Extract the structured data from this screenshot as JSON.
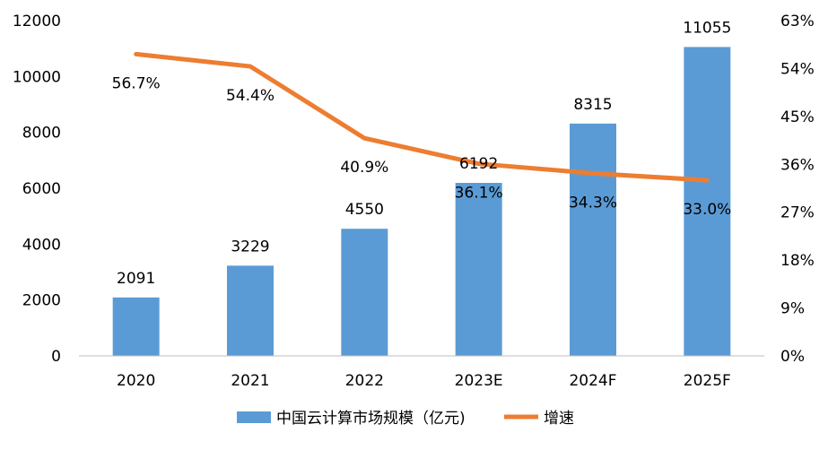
{
  "chart_data": {
    "type": "bar",
    "categories": [
      "2020",
      "2021",
      "2022",
      "2023E",
      "2024F",
      "2025F"
    ],
    "series": [
      {
        "name": "中国云计算市场规模（亿元)",
        "type": "bar",
        "axis": "left",
        "values": [
          2091,
          3229,
          4550,
          6192,
          8315,
          11055
        ],
        "labels": [
          "2091",
          "3229",
          "4550",
          "6192",
          "8315",
          "11055"
        ]
      },
      {
        "name": "增速",
        "type": "line",
        "axis": "right",
        "values": [
          56.7,
          54.4,
          40.9,
          36.1,
          34.3,
          33.0
        ],
        "labels": [
          "56.7%",
          "54.4%",
          "40.9%",
          "36.1%",
          "34.3%",
          "33.0%"
        ]
      }
    ],
    "y_left": {
      "ylim": [
        0,
        12000
      ],
      "ticks": [
        "0",
        "2000",
        "4000",
        "6000",
        "8000",
        "10000",
        "12000"
      ]
    },
    "y_right": {
      "ylim": [
        0,
        63
      ],
      "ticks": [
        "0%",
        "9%",
        "18%",
        "27%",
        "36%",
        "45%",
        "54%",
        "63%"
      ]
    },
    "grid": false,
    "legend": "bottom",
    "colors": {
      "bar": "#5B9BD5",
      "line": "#ED7D31",
      "axis": "#BFBFBF"
    }
  }
}
